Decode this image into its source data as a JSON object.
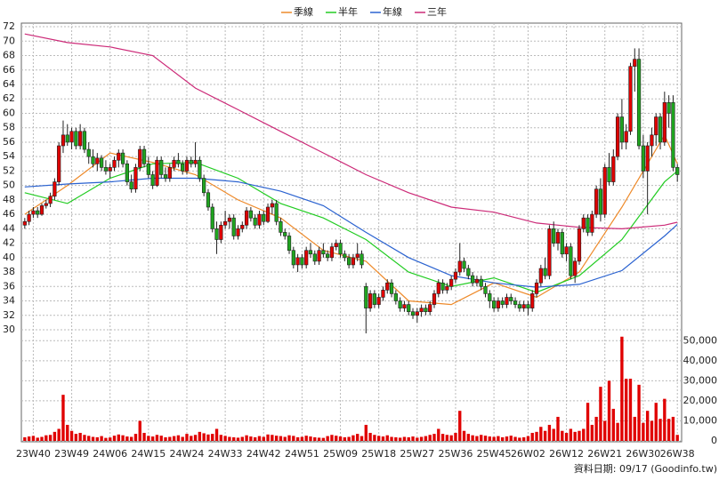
{
  "chart_data": {
    "type": "candlestick",
    "legend_position": "top",
    "grid": true,
    "up_color": "#e00000",
    "down_color": "#1fa51f",
    "xlim": [
      -0.8,
      154
    ],
    "xticks": [
      {
        "value": 2,
        "label": "23W40"
      },
      {
        "value": 11,
        "label": "23W49"
      },
      {
        "value": 20,
        "label": "24W06"
      },
      {
        "value": 29,
        "label": "24W15"
      },
      {
        "value": 38,
        "label": "24W24"
      },
      {
        "value": 47,
        "label": "24W33"
      },
      {
        "value": 56,
        "label": "24W42"
      },
      {
        "value": 65,
        "label": "24W51"
      },
      {
        "value": 74,
        "label": "25W09"
      },
      {
        "value": 83,
        "label": "25W18"
      },
      {
        "value": 92,
        "label": "25W27"
      },
      {
        "value": 101,
        "label": "25W36"
      },
      {
        "value": 110,
        "label": "25W45"
      },
      {
        "value": 118,
        "label": "26W02"
      },
      {
        "value": 127,
        "label": "26W12"
      },
      {
        "value": 136,
        "label": "26W21"
      },
      {
        "value": 145,
        "label": "26W30"
      },
      {
        "value": 153,
        "label": "26W38"
      }
    ],
    "ylim": [
      30,
      72.5
    ],
    "yticks": [
      30,
      32,
      34,
      36,
      38,
      40,
      42,
      44,
      46,
      48,
      50,
      52,
      54,
      56,
      58,
      60,
      62,
      64,
      66,
      68,
      70,
      72
    ],
    "candles": [
      [
        44.5,
        45.5,
        44,
        45
      ],
      [
        45,
        46.5,
        44.5,
        46
      ],
      [
        46,
        47,
        45.5,
        46.5
      ],
      [
        46.5,
        47,
        45.5,
        46
      ],
      [
        46,
        47.5,
        45.8,
        47.2
      ],
      [
        47.2,
        48,
        46.8,
        47.5
      ],
      [
        47.5,
        49,
        47,
        48.5
      ],
      [
        48.5,
        51,
        48,
        50.5
      ],
      [
        50.5,
        56,
        50,
        55.5
      ],
      [
        55.5,
        59,
        54.5,
        57
      ],
      [
        57,
        58.5,
        55.5,
        56
      ],
      [
        56,
        58,
        55,
        57.5
      ],
      [
        57.5,
        58,
        55,
        55.5
      ],
      [
        55.5,
        58.5,
        55,
        57.5
      ],
      [
        57.5,
        58,
        54.5,
        55
      ],
      [
        55,
        56,
        53,
        54
      ],
      [
        54,
        55,
        52.5,
        53
      ],
      [
        53,
        54.5,
        52,
        53.8
      ],
      [
        53.8,
        54.2,
        52,
        52.5
      ],
      [
        52.5,
        53.5,
        51.5,
        52
      ],
      [
        52,
        53,
        51,
        52.5
      ],
      [
        52.5,
        54,
        52,
        53.5
      ],
      [
        53.5,
        55,
        52.5,
        54.5
      ],
      [
        54.5,
        55,
        52.5,
        53
      ],
      [
        53,
        53.5,
        50,
        50.5
      ],
      [
        50.5,
        51.5,
        49,
        49.5
      ],
      [
        49.5,
        53,
        49,
        52.5
      ],
      [
        52.5,
        55.5,
        52,
        55
      ],
      [
        55,
        55.5,
        52.5,
        53
      ],
      [
        53,
        54,
        51,
        51.5
      ],
      [
        51.5,
        52,
        49.5,
        50
      ],
      [
        50,
        54,
        49.8,
        53.5
      ],
      [
        53.5,
        54,
        51,
        51.5
      ],
      [
        51.5,
        52.5,
        50.5,
        51
      ],
      [
        51,
        53,
        50.5,
        52.5
      ],
      [
        52.5,
        54,
        52,
        53.5
      ],
      [
        53.5,
        54.5,
        52.5,
        53
      ],
      [
        53,
        53.5,
        51.5,
        52
      ],
      [
        52,
        54,
        51.5,
        53.5
      ],
      [
        53.5,
        54,
        52.5,
        53
      ],
      [
        53,
        56,
        52.5,
        53.5
      ],
      [
        53.5,
        54,
        50.5,
        51
      ],
      [
        51,
        51.5,
        48.5,
        49
      ],
      [
        49,
        49.5,
        46.5,
        47
      ],
      [
        47,
        47.5,
        43.5,
        44
      ],
      [
        44,
        45,
        40.5,
        42.5
      ],
      [
        42.5,
        45,
        42,
        44.5
      ],
      [
        44.5,
        46.5,
        44,
        45
      ],
      [
        45,
        46,
        44,
        45.5
      ],
      [
        45.5,
        46,
        42.5,
        43
      ],
      [
        43,
        44.5,
        42.5,
        44
      ],
      [
        44,
        45,
        43.5,
        44.5
      ],
      [
        44.5,
        47,
        44,
        46.5
      ],
      [
        46.5,
        47,
        45,
        45.5
      ],
      [
        45.5,
        46,
        44,
        44.5
      ],
      [
        44.5,
        46.5,
        44,
        46
      ],
      [
        46,
        46.5,
        44.5,
        45
      ],
      [
        45,
        47.5,
        44.8,
        47
      ],
      [
        47,
        48,
        46,
        47.5
      ],
      [
        47.5,
        48,
        44.5,
        45
      ],
      [
        45,
        45.5,
        43,
        43.5
      ],
      [
        43.5,
        44,
        42.5,
        43
      ],
      [
        43,
        43.5,
        40.5,
        41
      ],
      [
        41,
        41.5,
        38.5,
        39
      ],
      [
        39,
        40.5,
        38,
        40
      ],
      [
        40,
        40.5,
        38.5,
        39
      ],
      [
        39,
        41.5,
        38.5,
        41
      ],
      [
        41,
        42,
        40,
        40.5
      ],
      [
        40.5,
        41,
        39,
        39.5
      ],
      [
        39.5,
        41.5,
        39,
        41
      ],
      [
        41,
        42,
        40,
        40.5
      ],
      [
        40.5,
        41,
        39.5,
        40
      ],
      [
        40,
        42,
        39.5,
        41.5
      ],
      [
        41.5,
        42.5,
        41,
        42
      ],
      [
        42,
        42.5,
        40,
        40.5
      ],
      [
        40.5,
        41,
        39.5,
        40
      ],
      [
        40,
        40.5,
        38.5,
        39
      ],
      [
        39,
        40.5,
        38.5,
        40
      ],
      [
        40,
        42,
        39.5,
        40.5
      ],
      [
        40.5,
        41,
        38.5,
        39
      ],
      [
        36,
        36.5,
        29.5,
        33
      ],
      [
        33,
        35.5,
        32.5,
        35
      ],
      [
        35,
        35.5,
        33,
        33.5
      ],
      [
        33.5,
        35,
        33,
        34.5
      ],
      [
        34.5,
        36,
        34,
        35.5
      ],
      [
        35.5,
        37,
        35,
        36.5
      ],
      [
        36.5,
        37,
        34.5,
        35
      ],
      [
        35,
        35.5,
        33.5,
        34
      ],
      [
        34,
        34.5,
        32.5,
        33
      ],
      [
        33,
        34,
        32.5,
        33.5
      ],
      [
        33.5,
        34,
        32,
        32.5
      ],
      [
        32.5,
        33,
        31.5,
        32
      ],
      [
        32,
        33,
        31,
        32.5
      ],
      [
        32.5,
        33.5,
        31.8,
        33
      ],
      [
        33,
        33.5,
        32,
        32.5
      ],
      [
        32.5,
        34,
        32,
        33.5
      ],
      [
        33.5,
        35.5,
        33,
        35
      ],
      [
        35,
        37,
        34.5,
        36.5
      ],
      [
        36.5,
        37,
        35,
        35.5
      ],
      [
        35.5,
        36.5,
        35,
        36
      ],
      [
        36,
        37.5,
        35.5,
        37
      ],
      [
        37,
        38.5,
        36.5,
        38
      ],
      [
        38,
        42,
        37.5,
        39.5
      ],
      [
        39.5,
        40,
        38,
        38.5
      ],
      [
        38.5,
        39,
        37,
        37.5
      ],
      [
        37.5,
        38,
        36,
        36.5
      ],
      [
        36.5,
        37.5,
        36,
        37
      ],
      [
        37,
        37.5,
        35.5,
        36
      ],
      [
        36,
        36.5,
        34.5,
        35
      ],
      [
        35,
        35.5,
        33,
        34
      ],
      [
        34,
        34.5,
        32.5,
        33
      ],
      [
        33,
        34.5,
        32.5,
        34
      ],
      [
        34,
        34.5,
        33,
        33.5
      ],
      [
        33.5,
        35,
        33,
        34.5
      ],
      [
        34.5,
        35,
        33.5,
        34
      ],
      [
        34,
        34.5,
        33,
        33.5
      ],
      [
        33.5,
        34,
        32.5,
        33
      ],
      [
        33,
        34,
        32.5,
        33.5
      ],
      [
        33.5,
        34,
        32,
        33
      ],
      [
        33,
        35.5,
        32.5,
        35
      ],
      [
        35,
        37,
        34.5,
        36.5
      ],
      [
        36.5,
        39,
        36,
        38.5
      ],
      [
        38.5,
        40,
        37,
        37.5
      ],
      [
        37.5,
        44.5,
        37,
        44
      ],
      [
        44,
        45,
        41.5,
        42
      ],
      [
        42,
        44,
        41,
        43.5
      ],
      [
        43.5,
        44,
        40,
        40.5
      ],
      [
        40.5,
        42,
        39.5,
        41.5
      ],
      [
        41.5,
        42,
        37,
        37.5
      ],
      [
        37.5,
        40,
        36.5,
        39.5
      ],
      [
        39.5,
        44.5,
        39,
        44
      ],
      [
        44,
        46,
        43.5,
        45.5
      ],
      [
        45.5,
        46,
        43,
        43.5
      ],
      [
        43.5,
        46.5,
        43,
        46
      ],
      [
        46,
        50,
        45.5,
        49.5
      ],
      [
        49.5,
        51,
        45,
        46
      ],
      [
        46,
        53,
        45.5,
        52.5
      ],
      [
        52.5,
        54.5,
        50,
        50.5
      ],
      [
        50.5,
        55,
        50,
        54
      ],
      [
        54,
        60,
        53.5,
        59.5
      ],
      [
        59.5,
        62,
        55,
        56
      ],
      [
        56,
        58.5,
        55,
        57.5
      ],
      [
        57.5,
        67,
        57,
        66.5
      ],
      [
        66.5,
        69,
        63,
        67.5
      ],
      [
        67.5,
        69,
        55,
        55.5
      ],
      [
        55.5,
        57,
        51,
        52
      ],
      [
        52,
        56,
        46,
        55.5
      ],
      [
        55.5,
        58,
        54,
        57
      ],
      [
        57,
        60,
        55.5,
        59.5
      ],
      [
        59.5,
        60,
        55,
        56
      ],
      [
        56,
        63,
        55.5,
        61.5
      ],
      [
        61.5,
        62.5,
        58,
        60
      ],
      [
        61.5,
        62.5,
        52,
        52.5
      ],
      [
        52.5,
        53,
        50.5,
        51.5
      ]
    ],
    "x": [
      0,
      10,
      20,
      30,
      40,
      50,
      60,
      70,
      80,
      90,
      100,
      110,
      120,
      130,
      140,
      150,
      153
    ],
    "series": [
      {
        "name": "季線",
        "color": "#ee8a2a",
        "values": [
          46,
          50,
          54.5,
          53.2,
          51.5,
          48,
          45.5,
          41,
          39.5,
          34,
          33.5,
          36.5,
          34.5,
          38,
          47,
          57,
          53
        ]
      },
      {
        "name": "半年",
        "color": "#22cc22",
        "values": [
          49,
          47.5,
          51,
          53,
          53.2,
          51,
          47.5,
          45.5,
          42.5,
          38,
          36,
          37.2,
          35.2,
          37.5,
          42.5,
          50.5,
          52
        ]
      },
      {
        "name": "年線",
        "color": "#2a62d0",
        "values": [
          49.8,
          50.2,
          50.5,
          51,
          51,
          50.5,
          49.2,
          47.2,
          43.5,
          40,
          37.5,
          36.5,
          35.9,
          36.3,
          38.2,
          43,
          44.6
        ]
      },
      {
        "name": "三年",
        "color": "#cc2a78",
        "values": [
          71,
          69.8,
          69.2,
          68,
          63.5,
          60.5,
          57.5,
          54.5,
          51.5,
          49,
          47,
          46.3,
          44.8,
          44.2,
          44,
          44.5,
          44.9
        ]
      }
    ],
    "volume": {
      "color": "#e00000",
      "ylim": [
        0,
        55000
      ],
      "yticks": [
        0,
        {
          "value": 10000,
          "label": "10,000"
        },
        {
          "value": 20000,
          "label": "20,000"
        },
        {
          "value": 30000,
          "label": "30,000"
        },
        {
          "value": 40000,
          "label": "40,000"
        },
        {
          "value": 50000,
          "label": "50,000"
        }
      ],
      "values": [
        1800,
        2200,
        2500,
        1600,
        2000,
        2800,
        3000,
        4500,
        6000,
        23000,
        8000,
        5000,
        3500,
        4000,
        3000,
        2500,
        2000,
        1800,
        2400,
        1500,
        1700,
        2600,
        3200,
        2800,
        2200,
        2000,
        3500,
        10000,
        4000,
        2500,
        2200,
        3000,
        2600,
        1800,
        2000,
        2400,
        2800,
        2000,
        3500,
        2500,
        3000,
        4500,
        3800,
        3200,
        3500,
        6000,
        3000,
        2500,
        2000,
        1800,
        1600,
        2000,
        2800,
        2200,
        1800,
        2400,
        2000,
        3200,
        3000,
        2600,
        2400,
        2000,
        2800,
        2500,
        1800,
        2000,
        2600,
        2200,
        1800,
        1600,
        1500,
        2400,
        3000,
        2600,
        2200,
        1800,
        2000,
        2800,
        3500,
        2400,
        8000,
        4000,
        3000,
        2500,
        2200,
        2800,
        2000,
        1800,
        1600,
        2000,
        1800,
        2200,
        1600,
        2000,
        2400,
        3000,
        3500,
        6000,
        3500,
        3000,
        2800,
        4000,
        15000,
        5000,
        3500,
        2800,
        2400,
        3000,
        2600,
        2200,
        2000,
        2400,
        1800,
        2200,
        2600,
        2000,
        1600,
        1800,
        2400,
        4000,
        4500,
        7000,
        5000,
        8000,
        6000,
        12000,
        5000,
        4000,
        6000,
        4500,
        5000,
        6000,
        19000,
        8000,
        12000,
        27000,
        10000,
        30000,
        16000,
        9000,
        52000,
        31000,
        31000,
        12000,
        28000,
        9000,
        15000,
        10000,
        19000,
        11000,
        21000,
        11000,
        12000,
        3000
      ]
    },
    "footer": "資料日期: 09/17 (Goodinfo.tw)"
  }
}
